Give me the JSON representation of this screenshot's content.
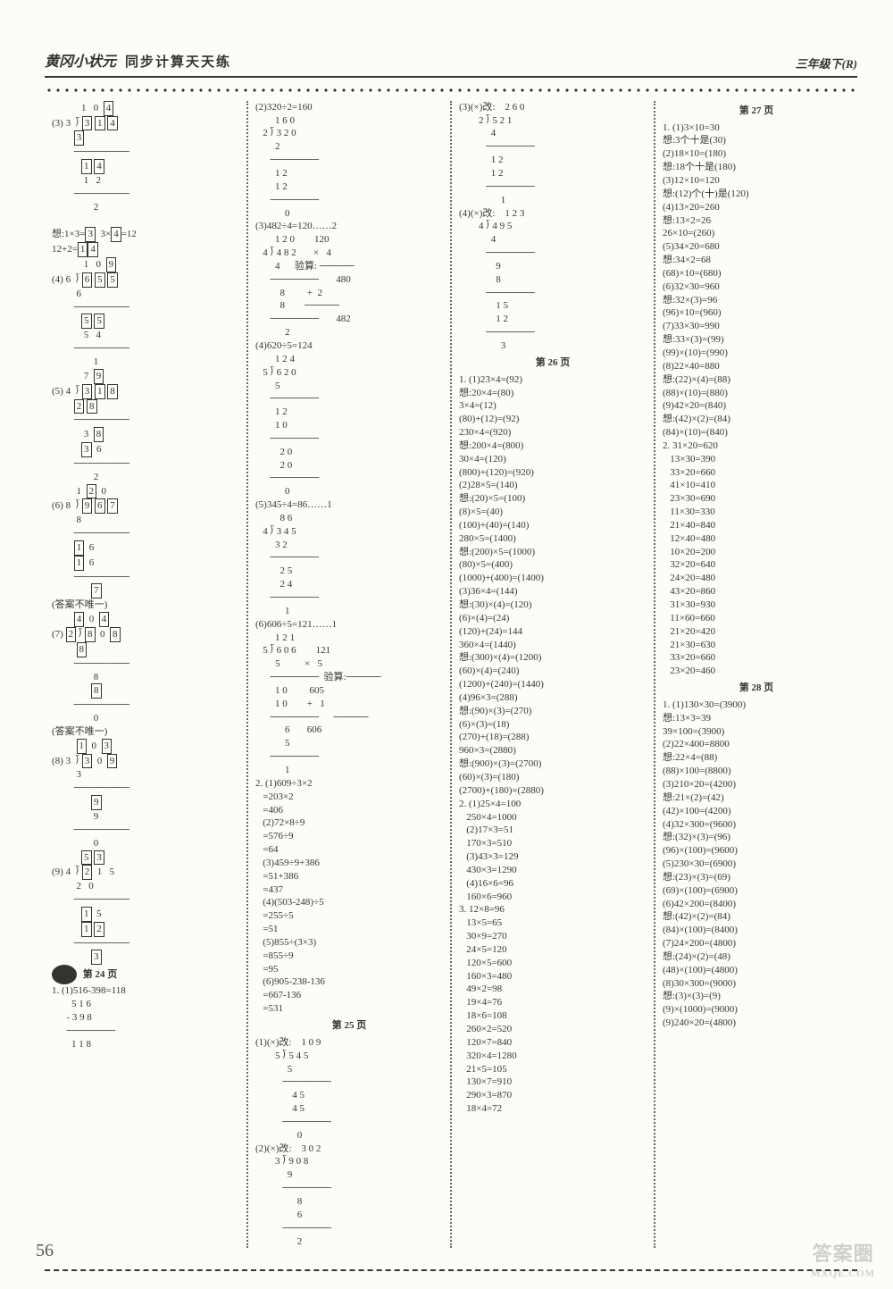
{
  "header": {
    "logo": "黄冈小状元",
    "title": "同步计算天天练",
    "grade": "三年级下(R)"
  },
  "page_number": "56",
  "watermark": {
    "main": "答案圈",
    "sub": "MXQE.COM"
  },
  "col1": {
    "lines": [
      "            1   0  [4]",
      "(3) 3  ⟌ [3] [1] [4]",
      "         [3]",
      "         ────────",
      "            [1] [4]",
      "             1   2",
      "         ────────",
      "                 2",
      "",
      "想:1×3=[3]  3×[4]=12",
      "12+2=[1][4]",
      "             1   0  [9]",
      "(4) 6  ⟌ [6] [5] [5]",
      "          6",
      "         ────────",
      "            [5] [5]",
      "             5   4",
      "         ────────",
      "                 1",
      "             7  [9]",
      "(5) 4  ⟌ [3] [1] [8]",
      "         [2] [8]",
      "         ────────",
      "             3  [8]",
      "            [3]  6",
      "         ────────",
      "                 2",
      "          1  [2]  0",
      "(6) 8  ⟌ [9] [6] [7]",
      "          8",
      "         ────────",
      "         [1]  6",
      "         [1]  6",
      "         ────────",
      "                [7]",
      "(答案不唯一)",
      "         [4]  0  [4]",
      "(7) [2] ⟌ [8]  0  [8]",
      "          [8]",
      "         ────────",
      "                 8",
      "                [8]",
      "         ────────",
      "                 0",
      "(答案不唯一)",
      "          [1]  0  [3]",
      "(8) 3  ⟌ [3]  0  [9]",
      "          3",
      "         ────────",
      "                [9]",
      "                 9",
      "         ────────",
      "                 0",
      "            [5] [3]",
      "(9) 4  ⟌ [2]  1   5",
      "          2   0",
      "         ────────",
      "            [1]  5",
      "            [1] [2]",
      "         ────────",
      "                [3]"
    ],
    "p24_heading": "第 24 页",
    "p24": [
      "1. (1)516-398=118",
      "        5 1 6",
      "      - 3 9 8",
      "      ───────",
      "        1 1 8"
    ]
  },
  "col2": {
    "lines_a": [
      "(2)320÷2=160",
      "        1 6 0",
      "   2 ⟌ 3 2 0",
      "        2",
      "      ───────",
      "        1 2",
      "        1 2",
      "      ───────",
      "            0",
      "(3)482÷4=120……2",
      "        1 2 0        120",
      "   4 ⟌ 4 8 2       ×   4",
      "        4      验算: ─────",
      "      ───────       480",
      "          8         +  2",
      "          8        ─────",
      "      ───────       482",
      "            2",
      "(4)620÷5=124",
      "        1 2 4",
      "   5 ⟌ 6 2 0",
      "        5",
      "      ───────",
      "        1 2",
      "        1 0",
      "      ───────",
      "          2 0",
      "          2 0",
      "      ───────",
      "            0",
      "(5)345÷4=86……1",
      "          8 6",
      "   4 ⟌ 3 4 5",
      "        3 2",
      "      ───────",
      "          2 5",
      "          2 4",
      "      ───────",
      "            1",
      "(6)606÷5=121……1",
      "        1 2 1",
      "   5 ⟌ 6 0 6        121",
      "        5          ×   5",
      "      ───────  验算:─────",
      "        1 0         605",
      "        1 0        +   1",
      "      ───────      ─────",
      "            6       606",
      "            5",
      "      ───────",
      "            1"
    ],
    "lines_b": [
      "2. (1)609÷3×2",
      "   =203×2",
      "   =406",
      "   (2)72×8÷9",
      "   =576÷9",
      "   =64",
      "   (3)459÷9+386",
      "   =51+386",
      "   =437",
      "   (4)(503-248)÷5",
      "   =255÷5",
      "   =51",
      "   (5)855÷(3×3)",
      "   =855÷9",
      "   =95",
      "   (6)905-238-136",
      "   =667-136",
      "   =531"
    ],
    "p25_heading": "第 25 页",
    "p25": [
      "(1)(×)改:    1 0 9",
      "        5 ⟌ 5 4 5",
      "             5",
      "           ───────",
      "               4 5",
      "               4 5",
      "           ───────",
      "                 0",
      "(2)(×)改:    3 0 2",
      "        3 ⟌ 9 0 8",
      "             9",
      "           ───────",
      "                 8",
      "                 6",
      "           ───────",
      "                 2"
    ]
  },
  "col3": {
    "lines_a": [
      "(3)(×)改:    2 6 0",
      "        2 ⟌ 5 2 1",
      "             4",
      "           ───────",
      "             1 2",
      "             1 2",
      "           ───────",
      "                 1",
      "(4)(×)改:    1 2 3",
      "        4 ⟌ 4 9 5",
      "             4",
      "           ───────",
      "               9",
      "               8",
      "           ───────",
      "               1 5",
      "               1 2",
      "           ───────",
      "                 3"
    ],
    "p26_heading": "第 26 页",
    "p26": [
      "1. (1)23×4=(92)",
      "想:20×4=(80)",
      "3×4=(12)",
      "(80)+(12)=(92)",
      "230×4=(920)",
      "想:200×4=(800)",
      "30×4=(120)",
      "(800)+(120)=(920)",
      "(2)28×5=(140)",
      "想:(20)×5=(100)",
      "(8)×5=(40)",
      "(100)+(40)=(140)",
      "280×5=(1400)",
      "想:(200)×5=(1000)",
      "(80)×5=(400)",
      "(1000)+(400)=(1400)",
      "(3)36×4=(144)",
      "想:(30)×(4)=(120)",
      "(6)×(4)=(24)",
      "(120)+(24)=144",
      "360×4=(1440)",
      "想:(300)×(4)=(1200)",
      "(60)×(4)=(240)",
      "(1200)+(240)=(1440)",
      "(4)96×3=(288)",
      "想:(90)×(3)=(270)",
      "(6)×(3)=(18)",
      "(270)+(18)=(288)",
      "960×3=(2880)",
      "想:(900)×(3)=(2700)",
      "(60)×(3)=(180)",
      "(2700)+(180)=(2880)",
      "2. (1)25×4=100",
      "   250×4=1000",
      "   (2)17×3=51",
      "   170×3=510",
      "   (3)43×3=129",
      "   430×3=1290",
      "   (4)16×6=96",
      "   160×6=960",
      "3. 12×8=96",
      "   13×5=65",
      "   30×9=270",
      "   24×5=120",
      "   120×5=600",
      "   160×3=480",
      "   49×2=98",
      "   19×4=76",
      "   18×6=108",
      "   260×2=520",
      "   120×7=840",
      "   320×4=1280",
      "   21×5=105",
      "   130×7=910",
      "   290×3=870",
      "   18×4=72"
    ]
  },
  "col4": {
    "p27_heading": "第 27 页",
    "p27": [
      "1. (1)3×10=30",
      "想:3个十是(30)",
      "(2)18×10=(180)",
      "想:18个十是(180)",
      "(3)12×10=120",
      "想:(12)个(十)是(120)",
      "(4)13×20=260",
      "想:13×2=26",
      "26×10=(260)",
      "(5)34×20=680",
      "想:34×2=68",
      "(68)×10=(680)",
      "(6)32×30=960",
      "想:32×(3)=96",
      "(96)×10=(960)",
      "(7)33×30=990",
      "想:33×(3)=(99)",
      "(99)×(10)=(990)",
      "(8)22×40=880",
      "想:(22)×(4)=(88)",
      "(88)×(10)=(880)",
      "(9)42×20=(840)",
      "想:(42)×(2)=(84)",
      "(84)×(10)=(840)",
      "2. 31×20=620",
      "   13×30=390",
      "   33×20=660",
      "   41×10=410",
      "   23×30=690",
      "   11×30=330",
      "   21×40=840",
      "   12×40=480",
      "   10×20=200",
      "   32×20=640",
      "   24×20=480",
      "   43×20=860",
      "   31×30=930",
      "   11×60=660",
      "   21×20=420",
      "   21×30=630",
      "   33×20=660",
      "   23×20=460"
    ],
    "p28_heading": "第 28 页",
    "p28": [
      "1. (1)130×30=(3900)",
      "想:13×3=39",
      "39×100=(3900)",
      "(2)22×400=8800",
      "想:22×4=(88)",
      "(88)×100=(8800)",
      "(3)210×20=(4200)",
      "想:21×(2)=(42)",
      "(42)×100=(4200)",
      "(4)32×300=(9600)",
      "想:(32)×(3)=(96)",
      "(96)×(100)=(9600)",
      "(5)230×30=(6900)",
      "想:(23)×(3)=(69)",
      "(69)×(100)=(6900)",
      "(6)42×200=(8400)",
      "想:(42)×(2)=(84)",
      "(84)×(100)=(8400)",
      "(7)24×200=(4800)",
      "想:(24)×(2)=(48)",
      "(48)×(100)=(4800)",
      "(8)30×300=(9000)",
      "想:(3)×(3)=(9)",
      "(9)×(1000)=(9000)",
      "(9)240×20=(4800)"
    ]
  }
}
